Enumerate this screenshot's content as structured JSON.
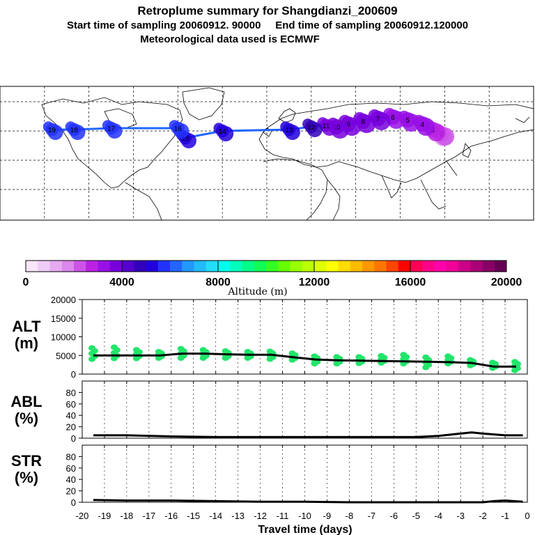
{
  "header": {
    "title": "Retroplume summary for Shangdianzi_200609",
    "subtitle": "Start time of sampling 20060912. 90000     End time of sampling 20060912.120000",
    "met": "Meteorological data used is ECMWF"
  },
  "colorbar": {
    "colors": [
      "#f7e6f7",
      "#efccf5",
      "#e6aaf0",
      "#dd88ec",
      "#cc55e8",
      "#bb22e4",
      "#9911e6",
      "#7700dd",
      "#5500cc",
      "#3300bb",
      "#2200dd",
      "#2233ff",
      "#2266ff",
      "#2299ff",
      "#22bbff",
      "#22ddff",
      "#00ffee",
      "#00ffbb",
      "#00ff88",
      "#11ff55",
      "#33ff22",
      "#66ff00",
      "#99ff00",
      "#bbff00",
      "#ddff00",
      "#ffff00",
      "#ffdd00",
      "#ffbb00",
      "#ff9900",
      "#ff7700",
      "#ff4400",
      "#ff0000",
      "#ff0055",
      "#ff0088",
      "#ff00aa",
      "#ee0099",
      "#cc0088",
      "#aa0077",
      "#880066",
      "#660055"
    ],
    "tick_labels": [
      "0",
      "4000",
      "8000",
      "12000",
      "16000",
      "20000"
    ],
    "label": "Altitude (m)"
  },
  "map": {
    "markers": [
      {
        "lon": 116.7,
        "lat": 40.6,
        "alt": 1500,
        "label": "1"
      },
      {
        "lon": 118,
        "lat": 41,
        "alt": 2000,
        "label": "2"
      },
      {
        "lon": 112,
        "lat": 44,
        "alt": 2600,
        "label": "3"
      },
      {
        "lon": 105,
        "lat": 48,
        "alt": 3000,
        "label": "4"
      },
      {
        "lon": 95,
        "lat": 51,
        "alt": 3200,
        "label": "5"
      },
      {
        "lon": 85,
        "lat": 53,
        "alt": 3400,
        "label": "6"
      },
      {
        "lon": 75,
        "lat": 52,
        "alt": 3500,
        "label": "7"
      },
      {
        "lon": 65,
        "lat": 50,
        "alt": 3600,
        "label": "8"
      },
      {
        "lon": 55,
        "lat": 48,
        "alt": 3700,
        "label": "9"
      },
      {
        "lon": 47,
        "lat": 46,
        "alt": 3800,
        "label": "10"
      },
      {
        "lon": 40,
        "lat": 47,
        "alt": 3900,
        "label": "11"
      },
      {
        "lon": 30,
        "lat": 46,
        "alt": 4500,
        "label": "12"
      },
      {
        "lon": 15,
        "lat": 44,
        "alt": 5000,
        "label": "13"
      },
      {
        "lon": -30,
        "lat": 43,
        "alt": 5200,
        "label": "14"
      },
      {
        "lon": -55,
        "lat": 38,
        "alt": 5300,
        "label": "15"
      },
      {
        "lon": -60,
        "lat": 45,
        "alt": 5500,
        "label": "16"
      },
      {
        "lon": -105,
        "lat": 45,
        "alt": 5500,
        "label": "17"
      },
      {
        "lon": -130,
        "lat": 44,
        "alt": 5500,
        "label": "18"
      },
      {
        "lon": -145,
        "lat": 44,
        "alt": 5800,
        "label": "19"
      }
    ]
  },
  "chart_data": [
    {
      "type": "line",
      "title": "ALT",
      "ylabel": "ALT (m)",
      "ylim": [
        0,
        20000
      ],
      "yticks": [
        "20000",
        "15000",
        "10000",
        "5000",
        "0"
      ],
      "x": [
        -19.5,
        -18.5,
        -17.5,
        -16.5,
        -15.5,
        -14.5,
        -13.5,
        -12.5,
        -11.5,
        -10.5,
        -9.5,
        -8.5,
        -7.5,
        -6.5,
        -5.5,
        -4.5,
        -3.5,
        -2.5,
        -1.5,
        -0.5
      ],
      "values": [
        5000,
        5000,
        5000,
        5000,
        5500,
        5500,
        5300,
        5200,
        5200,
        4500,
        3900,
        3700,
        3600,
        3500,
        3400,
        3300,
        3200,
        3000,
        2000,
        2000
      ],
      "scatter_top": [
        7000,
        7200,
        6500,
        6000,
        6800,
        6500,
        6200,
        6000,
        6100,
        5600,
        4800,
        4600,
        4600,
        4900,
        5200,
        4500,
        4800,
        3800,
        3100,
        3300
      ],
      "scatter_bottom": [
        4000,
        4200,
        4200,
        4300,
        4300,
        4300,
        4300,
        4300,
        4000,
        3800,
        2800,
        2800,
        2900,
        3000,
        2800,
        1800,
        2800,
        2300,
        1600,
        1000
      ]
    },
    {
      "type": "line",
      "title": "ABL",
      "ylabel": "ABL (%)",
      "ylim": [
        0,
        100
      ],
      "yticks": [
        "80",
        "60",
        "40",
        "20",
        "0"
      ],
      "x": [
        -19.5,
        -18,
        -16,
        -14,
        -12,
        -10,
        -8,
        -6,
        -5,
        -4,
        -3,
        -2.5,
        -2,
        -1,
        -0.2
      ],
      "values": [
        5,
        5,
        3,
        2,
        2,
        2,
        2,
        2,
        2,
        4,
        8,
        10,
        8,
        5,
        5
      ]
    },
    {
      "type": "line",
      "title": "STR",
      "ylabel": "STR (%)",
      "ylim": [
        0,
        100
      ],
      "yticks": [
        "80",
        "60",
        "40",
        "20",
        "0"
      ],
      "x": [
        -19.5,
        -18,
        -16,
        -14,
        -12,
        -10,
        -8,
        -6,
        -4,
        -2,
        -1.5,
        -1,
        -0.2
      ],
      "values": [
        4,
        3,
        3,
        2,
        1,
        1,
        0,
        0,
        0,
        0,
        2,
        3,
        1
      ]
    }
  ],
  "xaxis": {
    "tick_labels": [
      "-20",
      "-19",
      "-18",
      "-17",
      "-16",
      "-15",
      "-14",
      "-13",
      "-12",
      "-11",
      "-10",
      "-9",
      "-8",
      "-7",
      "-6",
      "-5",
      "-4",
      "-3",
      "-2",
      "-1",
      "0"
    ],
    "label": "Travel time (days)"
  },
  "panel_labels": {
    "alt": [
      "ALT",
      "(m)"
    ],
    "abl": [
      "ABL",
      "(%)"
    ],
    "str": [
      "STR",
      "(%)"
    ]
  }
}
